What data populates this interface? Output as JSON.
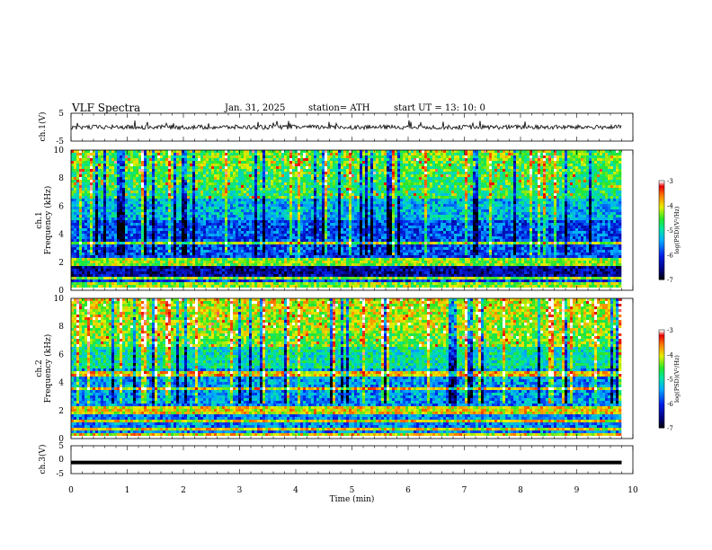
{
  "header": {
    "title": "VLF  Spectra",
    "date": "Jan. 31, 2025",
    "station": "station= ATH",
    "start": "start  UT  =   13: 10: 0"
  },
  "chart_data": [
    {
      "type": "line",
      "panel": "ch1-waveform",
      "ylabel": "ch.1(V)",
      "ylim": [
        -5,
        5
      ],
      "y_ticks": [
        "5",
        "-5"
      ],
      "xlim": [
        0,
        10
      ],
      "series_description": "noisy waveform centered near 0 V with spikes to ~+2.5 V",
      "baseline": 0,
      "noise_amplitude": 0.8,
      "spikes_max": 2.5
    },
    {
      "type": "heatmap",
      "panel": "ch1-spectrogram",
      "ylabel": "ch.1\nFrequency (kHz)",
      "ylim": [
        0,
        10
      ],
      "y_ticks": [
        "0",
        "2",
        "4",
        "6",
        "8",
        "10"
      ],
      "xlim": [
        0,
        10
      ],
      "colorbar": {
        "label": "log(PSD)(V²/Hz)",
        "range": [
          -7,
          -3
        ],
        "ticks": [
          "-3",
          "-4",
          "-5",
          "-6",
          "-7"
        ]
      },
      "features": {
        "strong_bands_khz": [
          0.2,
          0.5,
          0.9,
          1.9,
          2.2,
          3.3
        ],
        "dark_band_khz": [
          0.9,
          1.8
        ],
        "high_freq_activity_khz": [
          6.5,
          10
        ]
      }
    },
    {
      "type": "heatmap",
      "panel": "ch2-spectrogram",
      "ylabel": "ch.2\nFrequency (kHz)",
      "ylim": [
        0,
        10
      ],
      "y_ticks": [
        "0",
        "2",
        "4",
        "6",
        "8",
        "10"
      ],
      "xlim": [
        0,
        10
      ],
      "colorbar": {
        "label": "log(PSD)(V²/Hz)",
        "range": [
          -7,
          -3
        ],
        "ticks": [
          "-3",
          "-4",
          "-5",
          "-6",
          "-7"
        ]
      },
      "features": {
        "strong_bands_khz": [
          0.3,
          0.7,
          1.2,
          1.9,
          2.1,
          3.5,
          4.6
        ],
        "high_freq_activity_khz": [
          6.5,
          10
        ]
      }
    },
    {
      "type": "line",
      "panel": "ch3-waveform",
      "ylabel": "ch.3(V)",
      "ylim": [
        -5,
        5
      ],
      "y_ticks": [
        "5",
        "0",
        "-5"
      ],
      "xlim": [
        0,
        10
      ],
      "baseline": -1.0,
      "series_description": "thick nearly flat line near -1 V"
    }
  ],
  "x_axis": {
    "label": "Time (min)",
    "ticks": [
      "0",
      "1",
      "2",
      "3",
      "4",
      "5",
      "6",
      "7",
      "8",
      "9",
      "10"
    ],
    "range": [
      0,
      10
    ],
    "data_end": 9.8
  }
}
